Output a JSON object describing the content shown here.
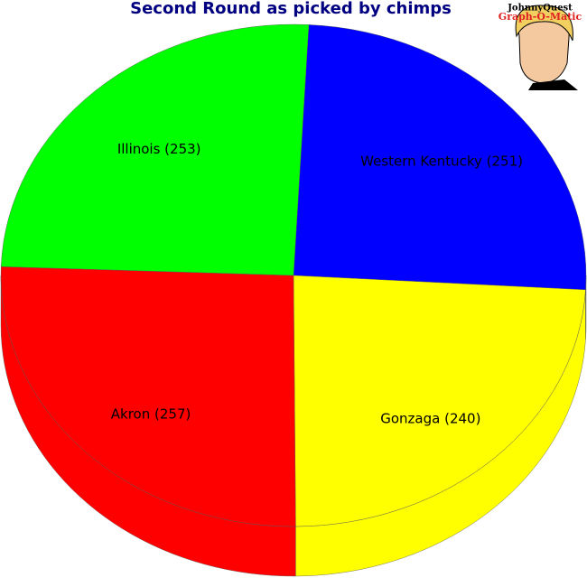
{
  "chart_data": {
    "type": "pie",
    "title": "Second Round as picked by chimps",
    "values": [
      251,
      240,
      257,
      253
    ],
    "value_labels": [
      "Western Kentucky (251)",
      "Gonzaga (240)",
      "Akron (257)",
      "Illinois (253)"
    ],
    "colors": [
      "#0000ff",
      "#ffff00",
      "#ff0000",
      "#00ff00"
    ],
    "three_d": true
  },
  "logo": {
    "line1": "JohnnyQuest",
    "line2": "Graph-O-Matic"
  }
}
